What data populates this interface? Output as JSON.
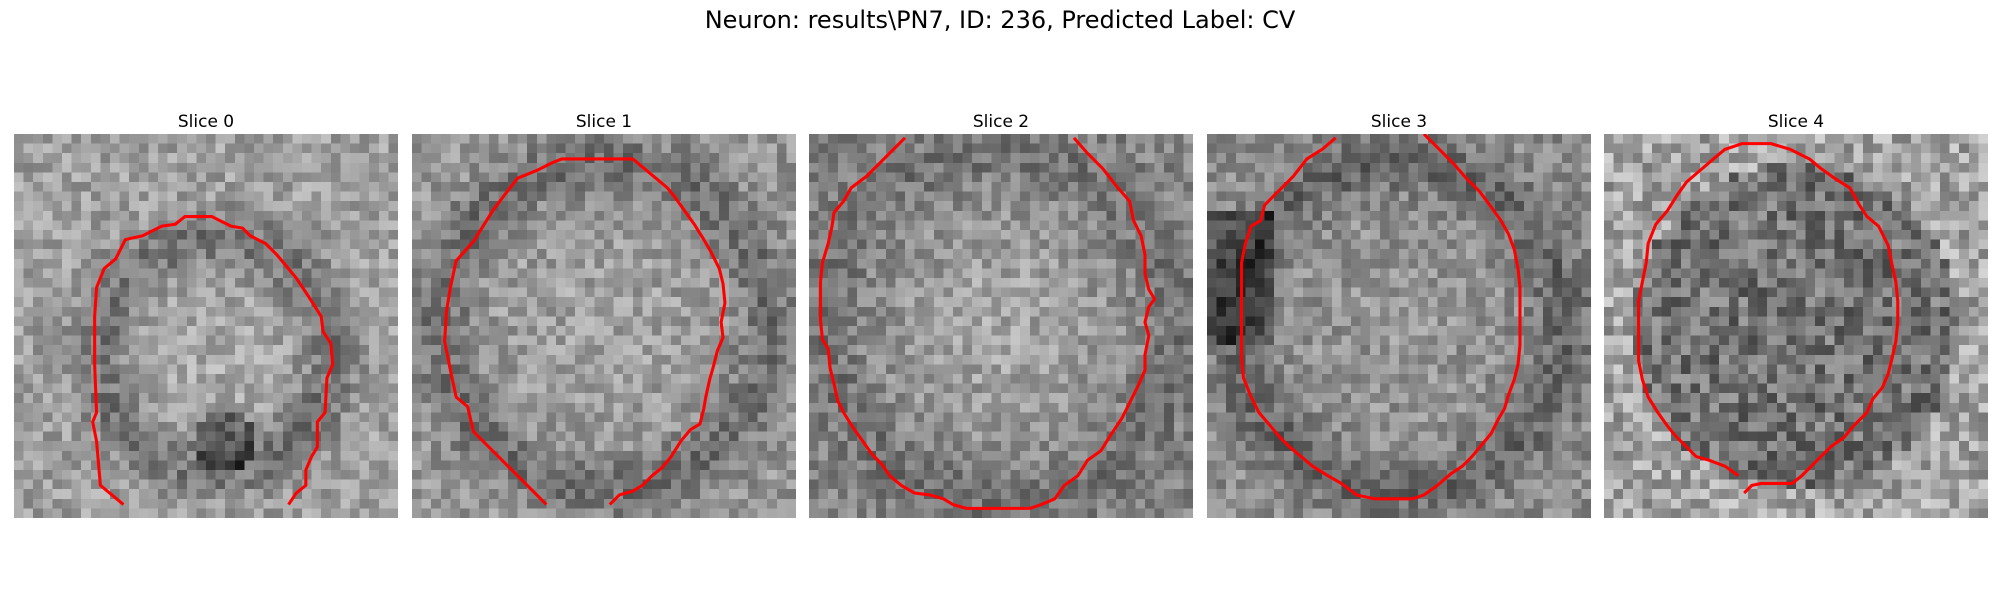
{
  "figure": {
    "suptitle": "Neuron: results\\PN7, ID: 236, Predicted Label: CV"
  },
  "contour_color": "#ff0000",
  "panels": [
    {
      "title": "Slice 0",
      "seed": 11,
      "blob": "ring_lower",
      "contour": [
        [
          11.4,
          38.6
        ],
        [
          9.0,
          36.6
        ],
        [
          8.6,
          32.0
        ],
        [
          8.2,
          30.0
        ],
        [
          8.6,
          29.0
        ],
        [
          8.4,
          24.0
        ],
        [
          8.4,
          19.0
        ],
        [
          8.6,
          16.0
        ],
        [
          9.4,
          14.0
        ],
        [
          10.6,
          13.0
        ],
        [
          11.6,
          11.0
        ],
        [
          13.4,
          10.6
        ],
        [
          15.4,
          9.6
        ],
        [
          16.8,
          9.4
        ],
        [
          17.8,
          8.6
        ],
        [
          20.6,
          8.6
        ],
        [
          21.4,
          9.0
        ],
        [
          22.6,
          9.6
        ],
        [
          23.8,
          9.8
        ],
        [
          24.6,
          10.6
        ],
        [
          26.2,
          11.4
        ],
        [
          27.4,
          12.6
        ],
        [
          29.4,
          15.0
        ],
        [
          30.6,
          16.8
        ],
        [
          32.0,
          19.0
        ],
        [
          32.2,
          20.6
        ],
        [
          33.0,
          21.8
        ],
        [
          33.2,
          24.0
        ],
        [
          32.6,
          25.4
        ],
        [
          32.4,
          29.0
        ],
        [
          31.6,
          30.0
        ],
        [
          31.6,
          32.6
        ],
        [
          31.0,
          33.6
        ],
        [
          30.4,
          35.0
        ],
        [
          30.4,
          36.6
        ],
        [
          29.4,
          37.4
        ],
        [
          28.6,
          38.6
        ]
      ]
    },
    {
      "title": "Slice 1",
      "seed": 23,
      "blob": "ring_full",
      "contour": [
        [
          14.0,
          38.6
        ],
        [
          11.0,
          35.6
        ],
        [
          8.0,
          32.6
        ],
        [
          6.4,
          31.0
        ],
        [
          5.8,
          28.4
        ],
        [
          4.6,
          27.4
        ],
        [
          4.0,
          24.6
        ],
        [
          3.4,
          21.6
        ],
        [
          3.6,
          18.4
        ],
        [
          4.0,
          16.0
        ],
        [
          4.6,
          13.2
        ],
        [
          6.4,
          11.2
        ],
        [
          7.4,
          9.6
        ],
        [
          8.4,
          8.0
        ],
        [
          9.6,
          6.4
        ],
        [
          11.0,
          4.6
        ],
        [
          13.0,
          3.8
        ],
        [
          14.6,
          3.0
        ],
        [
          15.6,
          2.6
        ],
        [
          17.6,
          2.6
        ],
        [
          19.6,
          2.6
        ],
        [
          21.6,
          2.6
        ],
        [
          23.0,
          2.6
        ],
        [
          24.2,
          3.6
        ],
        [
          25.4,
          4.6
        ],
        [
          26.6,
          5.6
        ],
        [
          27.4,
          6.6
        ],
        [
          28.4,
          8.0
        ],
        [
          29.4,
          9.4
        ],
        [
          30.4,
          11.0
        ],
        [
          31.2,
          12.4
        ],
        [
          32.0,
          14.0
        ],
        [
          32.4,
          15.6
        ],
        [
          32.6,
          17.6
        ],
        [
          32.2,
          19.6
        ],
        [
          32.4,
          21.2
        ],
        [
          31.8,
          22.6
        ],
        [
          31.4,
          24.2
        ],
        [
          31.0,
          25.6
        ],
        [
          30.6,
          27.4
        ],
        [
          30.4,
          28.6
        ],
        [
          30.0,
          30.2
        ],
        [
          29.0,
          30.8
        ],
        [
          28.0,
          32.0
        ],
        [
          27.0,
          33.6
        ],
        [
          26.0,
          34.8
        ],
        [
          25.0,
          35.6
        ],
        [
          24.0,
          36.6
        ],
        [
          23.0,
          37.2
        ],
        [
          21.6,
          37.6
        ],
        [
          20.6,
          38.6
        ]
      ]
    },
    {
      "title": "Slice 2",
      "seed": 37,
      "blob": "disc_bright",
      "contour": [
        [
          10.0,
          0.4
        ],
        [
          8.0,
          2.4
        ],
        [
          6.0,
          4.4
        ],
        [
          4.4,
          5.6
        ],
        [
          3.6,
          7.0
        ],
        [
          2.6,
          8.2
        ],
        [
          2.4,
          9.6
        ],
        [
          2.0,
          11.4
        ],
        [
          1.4,
          13.4
        ],
        [
          1.2,
          15.4
        ],
        [
          1.2,
          17.4
        ],
        [
          1.2,
          19.4
        ],
        [
          1.4,
          21.4
        ],
        [
          2.0,
          22.4
        ],
        [
          2.2,
          24.4
        ],
        [
          2.6,
          26.0
        ],
        [
          3.0,
          27.8
        ],
        [
          3.6,
          29.0
        ],
        [
          4.6,
          30.6
        ],
        [
          5.6,
          32.0
        ],
        [
          6.6,
          33.4
        ],
        [
          7.6,
          34.4
        ],
        [
          8.4,
          35.6
        ],
        [
          9.6,
          36.6
        ],
        [
          11.0,
          37.4
        ],
        [
          12.6,
          37.6
        ],
        [
          14.0,
          38.0
        ],
        [
          15.0,
          38.6
        ],
        [
          16.4,
          39.0
        ],
        [
          23.0,
          39.0
        ],
        [
          24.2,
          38.6
        ],
        [
          25.6,
          38.0
        ],
        [
          26.6,
          36.6
        ],
        [
          28.0,
          35.6
        ],
        [
          29.0,
          34.0
        ],
        [
          30.4,
          33.0
        ],
        [
          31.4,
          31.4
        ],
        [
          32.6,
          29.6
        ],
        [
          33.4,
          28.0
        ],
        [
          34.2,
          26.4
        ],
        [
          35.0,
          24.6
        ],
        [
          35.0,
          23.0
        ],
        [
          35.4,
          21.0
        ],
        [
          35.0,
          19.6
        ],
        [
          35.4,
          18.0
        ],
        [
          36.0,
          17.2
        ],
        [
          35.4,
          16.2
        ],
        [
          35.0,
          14.6
        ],
        [
          35.0,
          12.6
        ],
        [
          34.6,
          10.6
        ],
        [
          33.8,
          9.0
        ],
        [
          33.4,
          7.0
        ],
        [
          32.0,
          5.4
        ],
        [
          30.6,
          3.6
        ],
        [
          29.0,
          2.0
        ],
        [
          27.6,
          0.4
        ]
      ]
    },
    {
      "title": "Slice 3",
      "seed": 53,
      "blob": "ring_dark_left",
      "contour": [
        [
          13.4,
          0.4
        ],
        [
          12.0,
          1.6
        ],
        [
          10.4,
          2.6
        ],
        [
          9.0,
          4.4
        ],
        [
          7.4,
          6.0
        ],
        [
          6.0,
          7.4
        ],
        [
          5.6,
          9.0
        ],
        [
          4.6,
          9.6
        ],
        [
          4.0,
          11.4
        ],
        [
          3.6,
          13.4
        ],
        [
          3.6,
          15.4
        ],
        [
          3.6,
          17.4
        ],
        [
          3.6,
          19.4
        ],
        [
          3.6,
          21.4
        ],
        [
          3.6,
          23.4
        ],
        [
          3.8,
          25.4
        ],
        [
          4.6,
          27.4
        ],
        [
          5.4,
          29.0
        ],
        [
          6.6,
          30.4
        ],
        [
          7.6,
          31.6
        ],
        [
          8.6,
          32.6
        ],
        [
          9.8,
          33.6
        ],
        [
          11.0,
          34.6
        ],
        [
          12.6,
          35.6
        ],
        [
          14.0,
          36.4
        ],
        [
          15.6,
          37.6
        ],
        [
          17.4,
          38.0
        ],
        [
          19.4,
          38.0
        ],
        [
          21.4,
          38.0
        ],
        [
          22.6,
          37.6
        ],
        [
          24.0,
          36.6
        ],
        [
          25.4,
          35.4
        ],
        [
          26.6,
          34.6
        ],
        [
          27.6,
          33.6
        ],
        [
          28.6,
          32.4
        ],
        [
          29.6,
          31.2
        ],
        [
          30.4,
          29.6
        ],
        [
          31.0,
          28.6
        ],
        [
          31.4,
          27.2
        ],
        [
          32.0,
          25.6
        ],
        [
          32.4,
          24.0
        ],
        [
          32.6,
          22.0
        ],
        [
          32.6,
          20.0
        ],
        [
          32.6,
          18.0
        ],
        [
          32.6,
          16.0
        ],
        [
          32.4,
          14.0
        ],
        [
          32.0,
          12.0
        ],
        [
          31.4,
          10.4
        ],
        [
          30.6,
          9.0
        ],
        [
          29.6,
          7.6
        ],
        [
          28.4,
          6.0
        ],
        [
          27.0,
          4.6
        ],
        [
          25.6,
          3.0
        ],
        [
          24.0,
          1.4
        ],
        [
          22.6,
          0.0
        ]
      ]
    },
    {
      "title": "Slice 4",
      "seed": 71,
      "blob": "disc_dark_noisy",
      "contour": [
        [
          14.0,
          35.6
        ],
        [
          12.6,
          34.6
        ],
        [
          11.0,
          34.0
        ],
        [
          9.6,
          33.6
        ],
        [
          8.6,
          32.6
        ],
        [
          7.4,
          31.4
        ],
        [
          6.6,
          30.4
        ],
        [
          5.6,
          29.0
        ],
        [
          4.6,
          27.4
        ],
        [
          4.0,
          25.6
        ],
        [
          3.6,
          23.6
        ],
        [
          3.6,
          21.6
        ],
        [
          3.6,
          19.4
        ],
        [
          3.6,
          17.4
        ],
        [
          4.0,
          15.4
        ],
        [
          4.4,
          13.4
        ],
        [
          4.6,
          11.4
        ],
        [
          5.4,
          9.4
        ],
        [
          6.6,
          8.0
        ],
        [
          7.6,
          6.4
        ],
        [
          8.6,
          5.0
        ],
        [
          10.0,
          3.8
        ],
        [
          11.4,
          2.6
        ],
        [
          12.6,
          1.6
        ],
        [
          14.4,
          1.0
        ],
        [
          17.4,
          1.0
        ],
        [
          19.4,
          1.6
        ],
        [
          21.4,
          2.6
        ],
        [
          22.6,
          3.6
        ],
        [
          24.0,
          4.6
        ],
        [
          25.6,
          5.6
        ],
        [
          26.6,
          7.4
        ],
        [
          27.4,
          8.6
        ],
        [
          28.6,
          9.6
        ],
        [
          29.6,
          11.6
        ],
        [
          30.0,
          13.6
        ],
        [
          30.4,
          15.4
        ],
        [
          30.6,
          17.4
        ],
        [
          30.6,
          19.6
        ],
        [
          30.4,
          21.6
        ],
        [
          30.0,
          23.4
        ],
        [
          29.6,
          25.0
        ],
        [
          29.0,
          26.4
        ],
        [
          28.0,
          27.6
        ],
        [
          27.4,
          29.0
        ],
        [
          26.0,
          30.4
        ],
        [
          25.0,
          31.6
        ],
        [
          23.6,
          32.6
        ],
        [
          22.6,
          33.6
        ],
        [
          21.6,
          34.6
        ],
        [
          20.6,
          35.6
        ],
        [
          19.6,
          36.4
        ],
        [
          16.4,
          36.4
        ],
        [
          15.4,
          36.6
        ],
        [
          14.6,
          37.4
        ]
      ]
    }
  ]
}
